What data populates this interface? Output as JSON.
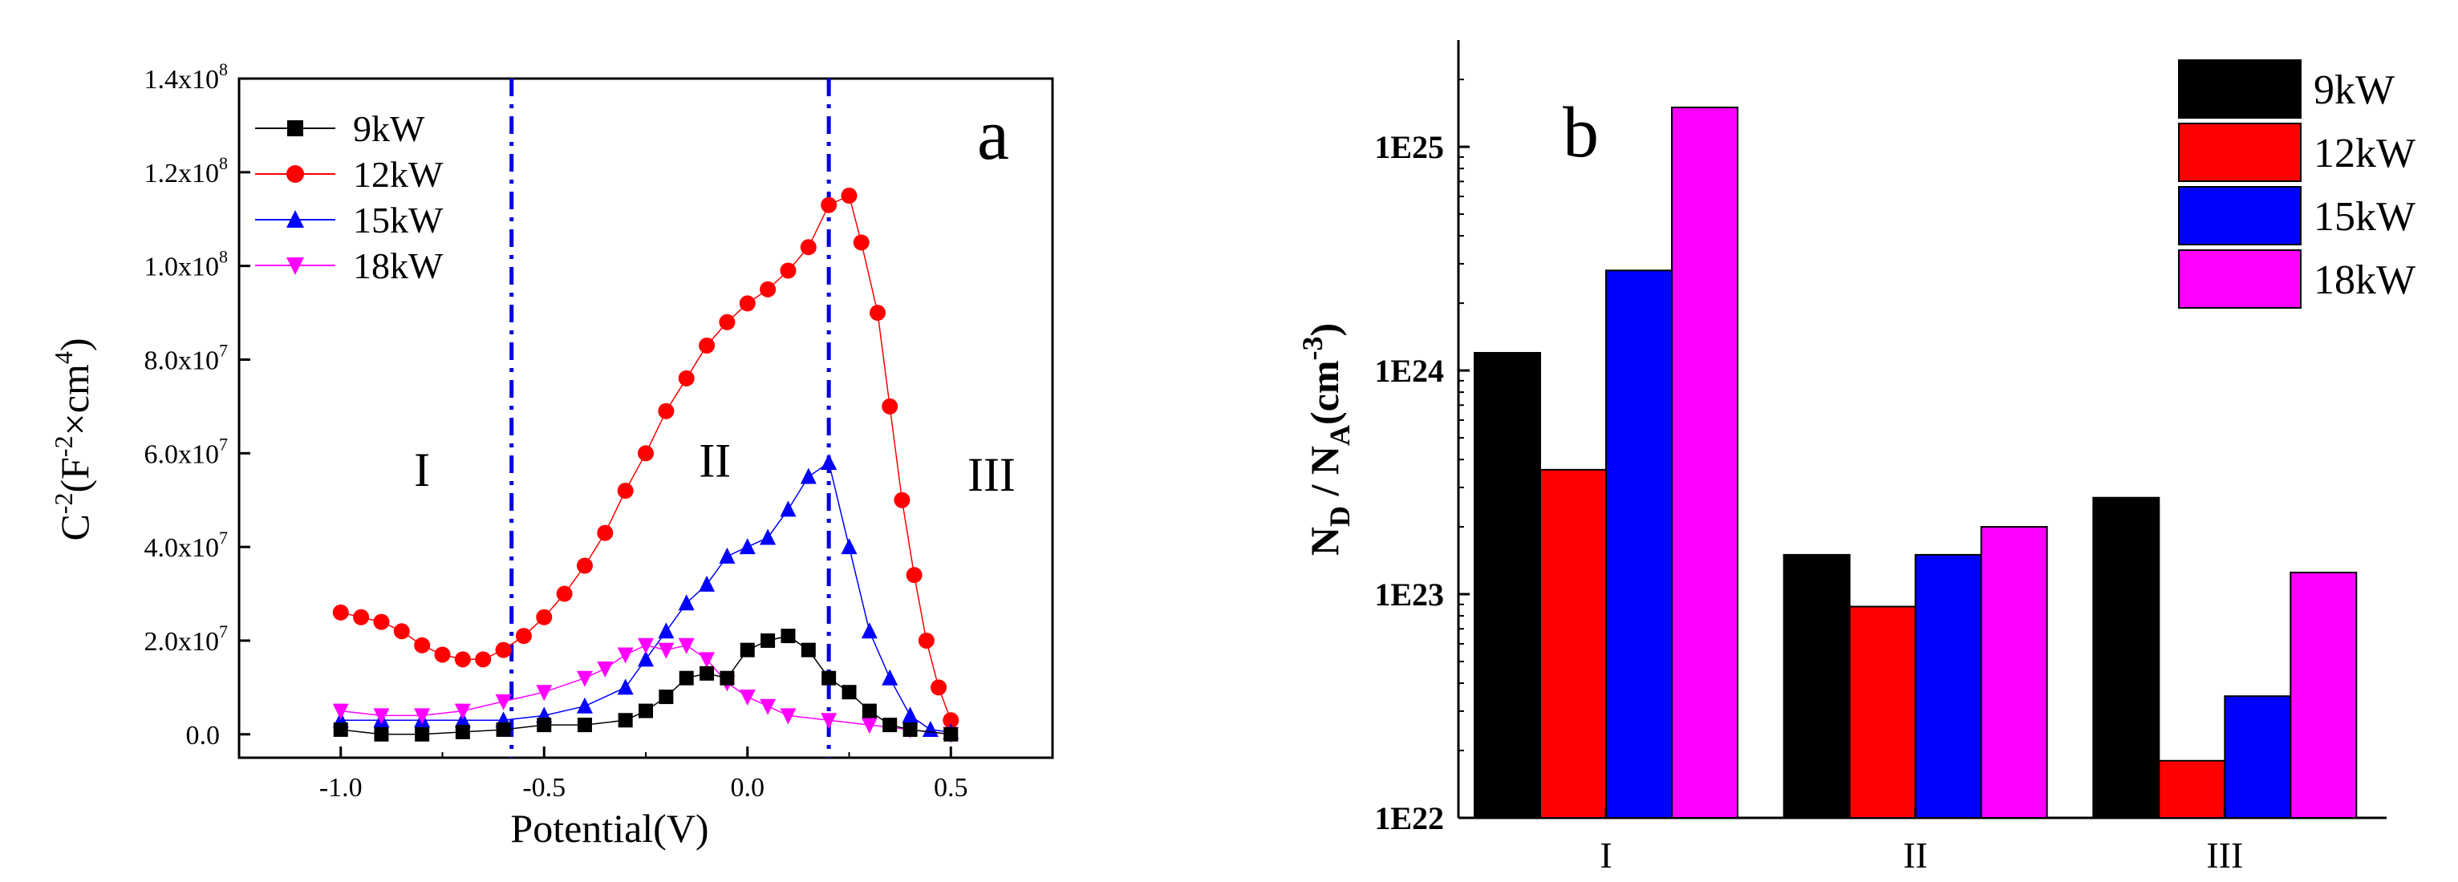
{
  "figure": "two-panel",
  "chart_data": [
    {
      "type": "scatter",
      "panel_label": "a",
      "xlabel": "Potential(V)",
      "ylabel": "C-2(F-2×cm4)",
      "ylabel_parts": {
        "prefix": "C",
        "sup1": "-2",
        "mid": "(F",
        "sup2": "-2",
        "times": "×cm",
        "sup3": "4",
        "end": ")"
      },
      "xlim": [
        -1.25,
        0.75
      ],
      "ylim": [
        -5000000.0,
        140000000.0
      ],
      "x_ticks": [
        -1.0,
        -0.5,
        0.0,
        0.5
      ],
      "x_tick_labels": [
        "-1.0",
        "-0.5",
        "0.0",
        "0.5"
      ],
      "y_ticks": [
        0,
        20000000.0,
        40000000.0,
        60000000.0,
        80000000.0,
        100000000.0,
        120000000.0,
        140000000.0
      ],
      "y_tick_labels": [
        {
          "base": "0.0",
          "exp": ""
        },
        {
          "base": "2.0x10",
          "exp": "7"
        },
        {
          "base": "4.0x10",
          "exp": "7"
        },
        {
          "base": "6.0x10",
          "exp": "7"
        },
        {
          "base": "8.0x10",
          "exp": "7"
        },
        {
          "base": "1.0x10",
          "exp": "8"
        },
        {
          "base": "1.2x10",
          "exp": "8"
        },
        {
          "base": "1.4x10",
          "exp": "8"
        }
      ],
      "vlines": [
        -0.58,
        0.2
      ],
      "vline_color": "#0000dd",
      "regions": [
        {
          "label": "I",
          "x": -0.8,
          "y": 53000000.0
        },
        {
          "label": "II",
          "x": -0.08,
          "y": 55000000.0
        },
        {
          "label": "III",
          "x": 0.6,
          "y": 52000000.0
        }
      ],
      "legend_position": "top-left",
      "series": [
        {
          "name": "9kW",
          "color": "#000000",
          "marker": "square",
          "points": [
            [
              -1.0,
              1000000.0
            ],
            [
              -0.9,
              0.0
            ],
            [
              -0.8,
              0.0
            ],
            [
              -0.7,
              500000.0
            ],
            [
              -0.6,
              1000000.0
            ],
            [
              -0.5,
              2000000.0
            ],
            [
              -0.4,
              2000000.0
            ],
            [
              -0.3,
              3000000.0
            ],
            [
              -0.25,
              5000000.0
            ],
            [
              -0.2,
              8000000.0
            ],
            [
              -0.15,
              12000000.0
            ],
            [
              -0.1,
              13000000.0
            ],
            [
              -0.05,
              12000000.0
            ],
            [
              0.0,
              18000000.0
            ],
            [
              0.05,
              20000000.0
            ],
            [
              0.1,
              21000000.0
            ],
            [
              0.15,
              18000000.0
            ],
            [
              0.2,
              12000000.0
            ],
            [
              0.25,
              9000000.0
            ],
            [
              0.3,
              5000000.0
            ],
            [
              0.35,
              2000000.0
            ],
            [
              0.4,
              1000000.0
            ],
            [
              0.5,
              0.0
            ]
          ]
        },
        {
          "name": "12kW",
          "color": "#ff0000",
          "marker": "circle",
          "points": [
            [
              -1.0,
              26000000.0
            ],
            [
              -0.95,
              25000000.0
            ],
            [
              -0.9,
              24000000.0
            ],
            [
              -0.85,
              22000000.0
            ],
            [
              -0.8,
              19000000.0
            ],
            [
              -0.75,
              17000000.0
            ],
            [
              -0.7,
              16000000.0
            ],
            [
              -0.65,
              16000000.0
            ],
            [
              -0.6,
              18000000.0
            ],
            [
              -0.55,
              21000000.0
            ],
            [
              -0.5,
              25000000.0
            ],
            [
              -0.45,
              30000000.0
            ],
            [
              -0.4,
              36000000.0
            ],
            [
              -0.35,
              43000000.0
            ],
            [
              -0.3,
              52000000.0
            ],
            [
              -0.25,
              60000000.0
            ],
            [
              -0.2,
              69000000.0
            ],
            [
              -0.15,
              76000000.0
            ],
            [
              -0.1,
              83000000.0
            ],
            [
              -0.05,
              88000000.0
            ],
            [
              0.0,
              92000000.0
            ],
            [
              0.05,
              95000000.0
            ],
            [
              0.1,
              99000000.0
            ],
            [
              0.15,
              104000000.0
            ],
            [
              0.2,
              113000000.0
            ],
            [
              0.25,
              115000000.0
            ],
            [
              0.28,
              105000000.0
            ],
            [
              0.32,
              90000000.0
            ],
            [
              0.35,
              70000000.0
            ],
            [
              0.38,
              50000000.0
            ],
            [
              0.41,
              34000000.0
            ],
            [
              0.44,
              20000000.0
            ],
            [
              0.47,
              10000000.0
            ],
            [
              0.5,
              3000000.0
            ]
          ]
        },
        {
          "name": "15kW",
          "color": "#0000ff",
          "marker": "triangle-up",
          "points": [
            [
              -1.0,
              3000000.0
            ],
            [
              -0.9,
              3000000.0
            ],
            [
              -0.8,
              3000000.0
            ],
            [
              -0.7,
              3000000.0
            ],
            [
              -0.6,
              3000000.0
            ],
            [
              -0.5,
              4000000.0
            ],
            [
              -0.4,
              6000000.0
            ],
            [
              -0.3,
              10000000.0
            ],
            [
              -0.25,
              16000000.0
            ],
            [
              -0.2,
              22000000.0
            ],
            [
              -0.15,
              28000000.0
            ],
            [
              -0.1,
              32000000.0
            ],
            [
              -0.05,
              38000000.0
            ],
            [
              0.0,
              40000000.0
            ],
            [
              0.05,
              42000000.0
            ],
            [
              0.1,
              48000000.0
            ],
            [
              0.15,
              55000000.0
            ],
            [
              0.2,
              58000000.0
            ],
            [
              0.25,
              40000000.0
            ],
            [
              0.3,
              22000000.0
            ],
            [
              0.35,
              12000000.0
            ],
            [
              0.4,
              4000000.0
            ],
            [
              0.45,
              1000000.0
            ],
            [
              0.5,
              500000.0
            ]
          ]
        },
        {
          "name": "18kW",
          "color": "#ff00ff",
          "marker": "triangle-down",
          "points": [
            [
              -1.0,
              5000000.0
            ],
            [
              -0.9,
              4000000.0
            ],
            [
              -0.8,
              4000000.0
            ],
            [
              -0.7,
              5000000.0
            ],
            [
              -0.6,
              7000000.0
            ],
            [
              -0.5,
              9000000.0
            ],
            [
              -0.4,
              12000000.0
            ],
            [
              -0.35,
              14000000.0
            ],
            [
              -0.3,
              17000000.0
            ],
            [
              -0.25,
              19000000.0
            ],
            [
              -0.2,
              18000000.0
            ],
            [
              -0.15,
              19000000.0
            ],
            [
              -0.1,
              16000000.0
            ],
            [
              -0.05,
              11000000.0
            ],
            [
              0.0,
              8000000.0
            ],
            [
              0.05,
              6000000.0
            ],
            [
              0.1,
              4000000.0
            ],
            [
              0.2,
              3000000.0
            ],
            [
              0.3,
              2000000.0
            ],
            [
              0.4,
              1000000.0
            ],
            [
              0.5,
              0.0
            ]
          ]
        }
      ]
    },
    {
      "type": "bar",
      "panel_label": "b",
      "yscale": "log",
      "ylim": [
        1e+22,
        3e+25
      ],
      "ylabel_parts": {
        "n1": "N",
        "s1": "D",
        "slash": " / ",
        "n2": "N",
        "s2": "A",
        "unit": "(cm",
        "sup": "-3",
        "end": ")"
      },
      "y_ticks": [
        1e+22,
        1e+23,
        1e+24,
        1e+25
      ],
      "y_tick_labels": [
        "1E22",
        "1E23",
        "1E24",
        "1E25"
      ],
      "categories": [
        "I",
        "II",
        "III"
      ],
      "legend_position": "top-right",
      "series": [
        {
          "name": "9kW",
          "color": "#000000",
          "values": [
            1.2e+24,
            1.5e+23,
            2.7e+23
          ]
        },
        {
          "name": "12kW",
          "color": "#ff0000",
          "values": [
            3.6e+23,
            8.8e+22,
            1.8e+22
          ]
        },
        {
          "name": "15kW",
          "color": "#0000ff",
          "values": [
            2.8e+24,
            1.5e+23,
            3.5e+22
          ]
        },
        {
          "name": "18kW",
          "color": "#ff00ff",
          "values": [
            1.5e+25,
            2e+23,
            1.25e+23
          ]
        }
      ]
    }
  ]
}
